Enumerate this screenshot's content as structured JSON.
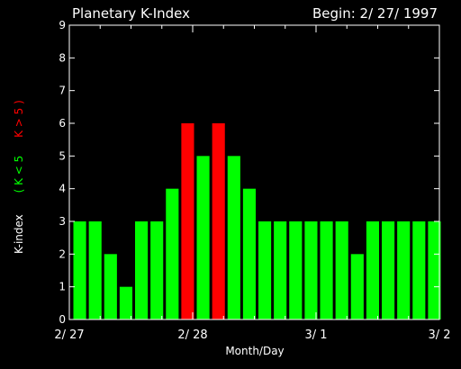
{
  "header": {
    "title": "Planetary K-Index",
    "begin": "Begin: 2/ 27/ 1997"
  },
  "ylabel": {
    "main": "K-index",
    "lt": "( K < 5",
    "gt": "K > 5 )"
  },
  "colors": {
    "background": "#000000",
    "axes": "#ffffff",
    "below": "#00ff00",
    "above": "#ff0000"
  },
  "chart_data": {
    "type": "bar",
    "title": "Planetary K-Index",
    "xlabel": "Month/Day",
    "ylabel": "K-index",
    "ylim": [
      0,
      9
    ],
    "yticks": [
      "0",
      "1",
      "2",
      "3",
      "4",
      "5",
      "6",
      "7",
      "8",
      "9"
    ],
    "xtick_labels": [
      "2/ 27",
      "2/ 28",
      "3/ 1",
      "3/ 2"
    ],
    "bars_per_day": 8,
    "threshold": 5,
    "values": [
      3,
      3,
      2,
      1,
      3,
      3,
      4,
      6,
      5,
      6,
      5,
      4,
      3,
      3,
      3,
      3,
      3,
      3,
      2,
      3,
      3,
      3,
      3,
      3
    ],
    "grid": false,
    "legend": "none"
  }
}
